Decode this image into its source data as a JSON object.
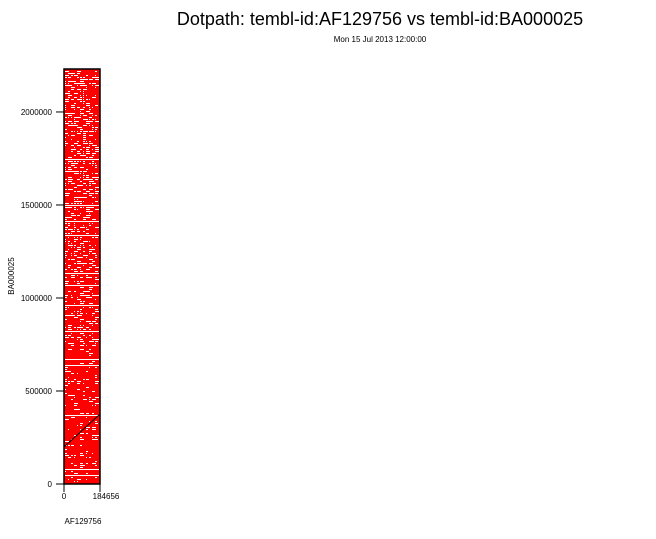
{
  "chart_data": {
    "type": "scatter",
    "title": "Dotpath: tembl-id:AF129756 vs tembl-id:BA000025",
    "subtitle": "Mon 15 Jul 2013 12:00:00",
    "xlabel": "AF129756",
    "ylabel": "BA000025",
    "xlim": [
      0,
      184656
    ],
    "ylim": [
      0,
      2231000
    ],
    "xticks": [
      0,
      184656
    ],
    "xtick_labels": [
      "0",
      "184656"
    ],
    "yticks": [
      0,
      500000,
      1000000,
      1500000,
      2000000
    ],
    "ytick_labels": [
      "0",
      "500000",
      "1000000",
      "1500000",
      "2000000"
    ],
    "grid": false,
    "colors": {
      "background_matches": "#ff0000",
      "gaps": "#ffffff",
      "path": "#000000"
    },
    "series": [
      {
        "type": "line",
        "x": [
          0,
          184656
        ],
        "y": [
          199000,
          376000
        ]
      }
    ]
  }
}
